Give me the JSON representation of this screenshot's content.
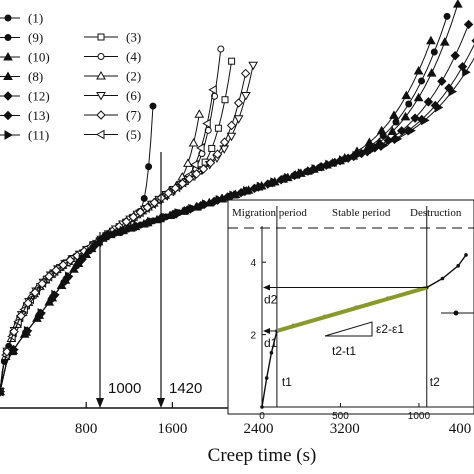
{
  "chart_data": {
    "type": "line",
    "xlabel": "Creep time (s)",
    "x_ticks": [
      "800",
      "1600",
      "2400",
      "3200",
      "400"
    ],
    "xlim": [
      0,
      4400
    ],
    "ylim": [
      0,
      1
    ],
    "marker_lines": [
      {
        "x": 1000,
        "label": "1000"
      },
      {
        "x": 1420,
        "label": "1420"
      }
    ],
    "legend": [
      {
        "label": "(1)",
        "marker": "filled-circle"
      },
      {
        "label": "(9)",
        "marker": "filled-circle"
      },
      {
        "label": "(10)",
        "marker": "filled-triangle-up"
      },
      {
        "label": "(8)",
        "marker": "filled-triangle-up"
      },
      {
        "label": "(12)",
        "marker": "filled-diamond"
      },
      {
        "label": "(13)",
        "marker": "filled-diamond"
      },
      {
        "label": "(11)",
        "marker": "filled-triangle-right"
      },
      {
        "label": "(3)",
        "marker": "open-square"
      },
      {
        "label": "(4)",
        "marker": "open-circle"
      },
      {
        "label": "(2)",
        "marker": "open-triangle-up"
      },
      {
        "label": "(6)",
        "marker": "open-triangle-down"
      },
      {
        "label": "(7)",
        "marker": "open-diamond"
      },
      {
        "label": "(5)",
        "marker": "open-triangle-left"
      }
    ],
    "series": [
      {
        "label": "(1)",
        "marker": "filled-circle",
        "fail_x": 1420,
        "end_y": 0.74
      },
      {
        "label": "(2)",
        "marker": "open-triangle-up",
        "fail_x": 1850,
        "end_y": 0.72
      },
      {
        "label": "(3)",
        "marker": "open-square",
        "fail_x": 2150,
        "end_y": 0.85
      },
      {
        "label": "(4)",
        "marker": "open-circle",
        "fail_x": 2050,
        "end_y": 0.88
      },
      {
        "label": "(5)",
        "marker": "open-triangle-left",
        "fail_x": 1980,
        "end_y": 0.78
      },
      {
        "label": "(6)",
        "marker": "open-triangle-down",
        "fail_x": 2350,
        "end_y": 0.84
      },
      {
        "label": "(7)",
        "marker": "open-diamond",
        "fail_x": 2280,
        "end_y": 0.82
      },
      {
        "label": "(8)",
        "marker": "filled-triangle-up",
        "fail_x": 4000,
        "end_y": 0.9
      },
      {
        "label": "(9)",
        "marker": "filled-circle",
        "fail_x": 4150,
        "end_y": 0.96
      },
      {
        "label": "(10)",
        "marker": "filled-triangle-up",
        "fail_x": 4250,
        "end_y": 0.99
      },
      {
        "label": "(11)",
        "marker": "filled-triangle-right",
        "fail_x": 4450,
        "end_y": 0.88
      },
      {
        "label": "(12)",
        "marker": "filled-diamond",
        "fail_x": 4350,
        "end_y": 0.94
      },
      {
        "label": "(13)",
        "marker": "filled-diamond",
        "fail_x": 4420,
        "end_y": 0.9
      }
    ],
    "inset": {
      "phases": [
        "Migration period",
        "Stable period",
        "Destruction"
      ],
      "x_ticks": [
        "0",
        "500",
        "1000"
      ],
      "y_ticks": [
        "2",
        "4"
      ],
      "xlim": [
        0,
        1300
      ],
      "ylim": [
        0,
        5
      ],
      "t1": 95,
      "t2": 1050,
      "d1": 2.1,
      "d2": 3.3,
      "labels": {
        "d1": "d1",
        "d2": "d2",
        "t1": "t1",
        "t2": "t2",
        "rise": "ε2-ε1",
        "run": "t2-t1"
      },
      "curve": [
        [
          0,
          0
        ],
        [
          30,
          0.8
        ],
        [
          60,
          1.5
        ],
        [
          95,
          2.1
        ],
        [
          200,
          2.25
        ],
        [
          400,
          2.5
        ],
        [
          600,
          2.75
        ],
        [
          800,
          3.0
        ],
        [
          1050,
          3.3
        ],
        [
          1150,
          3.55
        ],
        [
          1250,
          3.9
        ],
        [
          1300,
          4.2
        ]
      ]
    }
  },
  "colors": {
    "line": "#111111",
    "highlight": "#8a9a2a"
  }
}
